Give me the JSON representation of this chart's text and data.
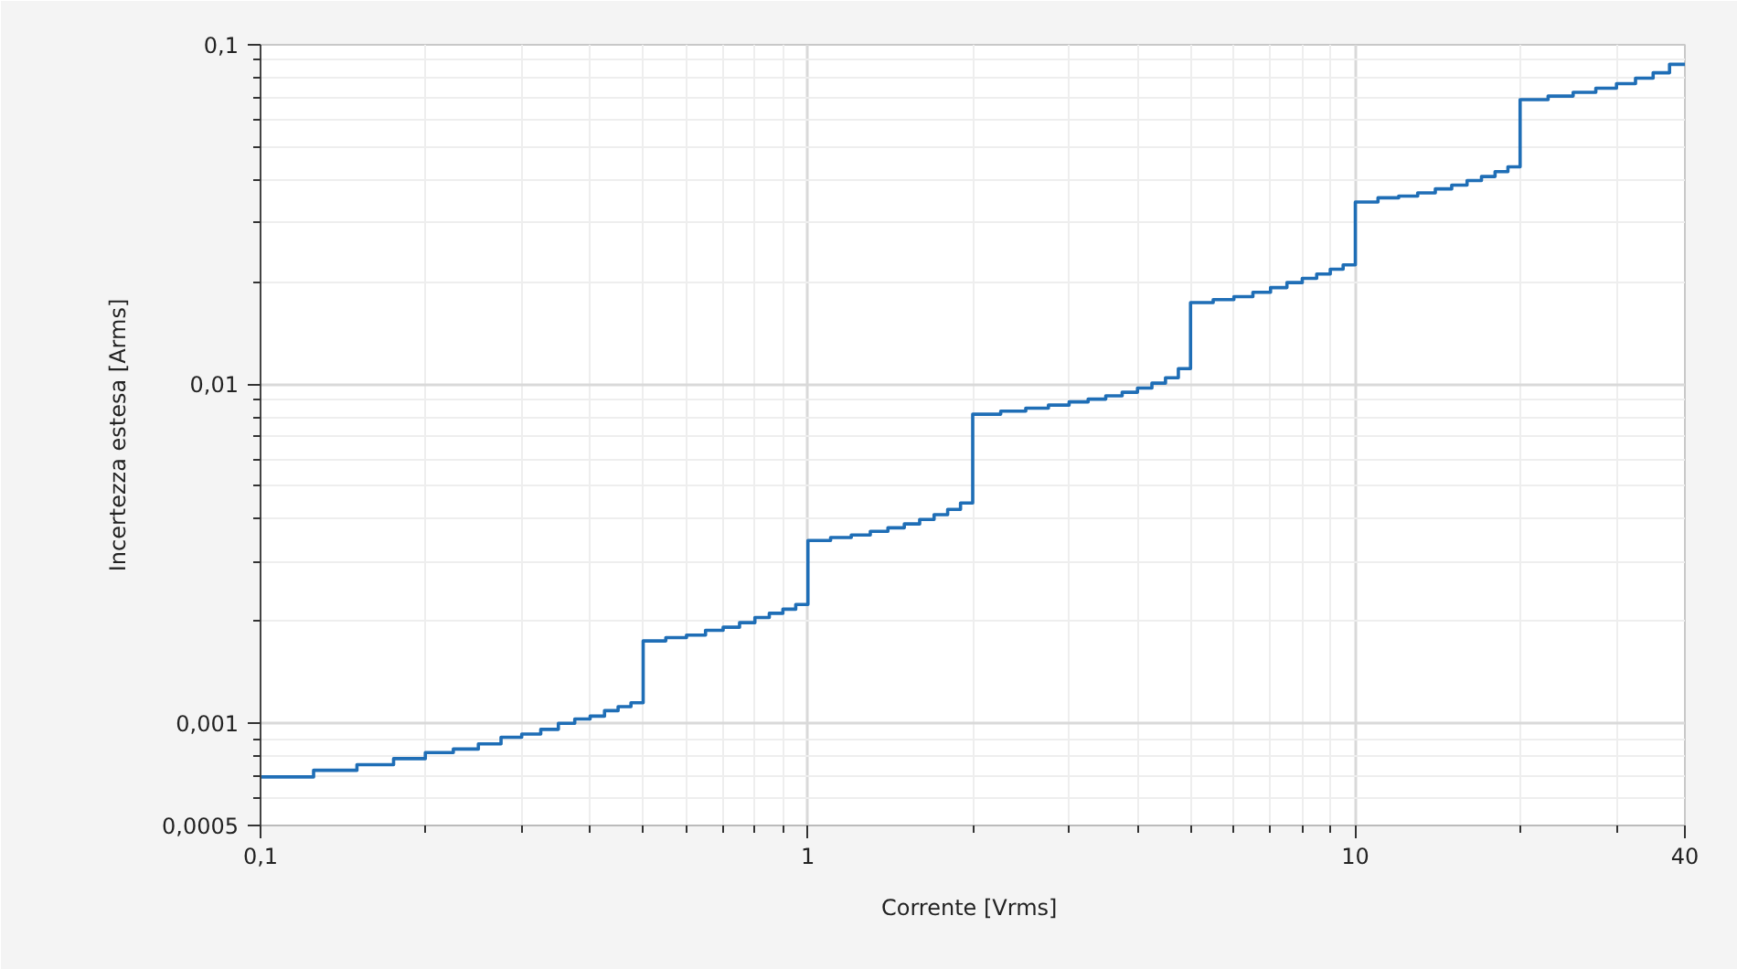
{
  "chart_data": {
    "type": "step",
    "color": "#1f6eb6",
    "x": [
      0.1,
      0.125,
      0.15,
      0.175,
      0.2,
      0.225,
      0.25,
      0.275,
      0.3,
      0.325,
      0.35,
      0.375,
      0.4,
      0.425,
      0.45,
      0.475,
      0.5,
      0.55,
      0.6,
      0.65,
      0.7,
      0.75,
      0.8,
      0.85,
      0.9,
      0.95,
      1,
      1.1,
      1.2,
      1.3,
      1.4,
      1.5,
      1.6,
      1.7,
      1.8,
      1.9,
      2,
      2.25,
      2.5,
      2.75,
      3,
      3.25,
      3.5,
      3.75,
      4,
      4.25,
      4.5,
      4.75,
      5,
      5.5,
      6,
      6.5,
      7,
      7.5,
      8,
      8.5,
      9,
      9.5,
      10,
      11,
      12,
      13,
      14,
      15,
      16,
      17,
      18,
      19,
      20,
      22.5,
      25,
      27.5,
      30,
      32.5,
      35,
      37.5,
      40
    ],
    "values": [
      0.000695,
      0.000727,
      0.000755,
      0.000787,
      0.00082,
      0.00084,
      0.00087,
      0.00091,
      0.00093,
      0.00096,
      0.001,
      0.00103,
      0.00105,
      0.00109,
      0.00112,
      0.00115,
      0.00175,
      0.00179,
      0.00182,
      0.00188,
      0.00192,
      0.00198,
      0.00205,
      0.00211,
      0.00217,
      0.00224,
      0.00346,
      0.00353,
      0.00359,
      0.00368,
      0.00377,
      0.00387,
      0.00399,
      0.00412,
      0.00427,
      0.00446,
      0.00815,
      0.00832,
      0.00849,
      0.00867,
      0.00886,
      0.00903,
      0.00923,
      0.00946,
      0.00973,
      0.01006,
      0.01044,
      0.0111,
      0.01738,
      0.01774,
      0.0181,
      0.01865,
      0.01925,
      0.01991,
      0.02049,
      0.02111,
      0.02181,
      0.02246,
      0.0344,
      0.0354,
      0.0358,
      0.0366,
      0.0376,
      0.0386,
      0.0398,
      0.0409,
      0.0423,
      0.0437,
      0.0689,
      0.0706,
      0.0724,
      0.0745,
      0.0768,
      0.0797,
      0.0827,
      0.0876,
      0.0876
    ],
    "xlabel": "Corrente  [Vrms]",
    "ylabel": "Incertezza estesa [Arms]",
    "log": "xy",
    "grid": true,
    "xlim": [
      0.1,
      40
    ],
    "ylim": [
      0.0005,
      0.1
    ],
    "xticks": [
      {
        "value": 0.1,
        "label": "0,1"
      },
      1,
      10,
      40
    ],
    "yticks": [
      {
        "value": 0.0005,
        "label": "0,0005"
      },
      {
        "value": 0.001,
        "label": "0,001"
      },
      {
        "value": 0.01,
        "label": "0,01"
      },
      {
        "value": 0.1,
        "label": "0,1"
      }
    ]
  }
}
